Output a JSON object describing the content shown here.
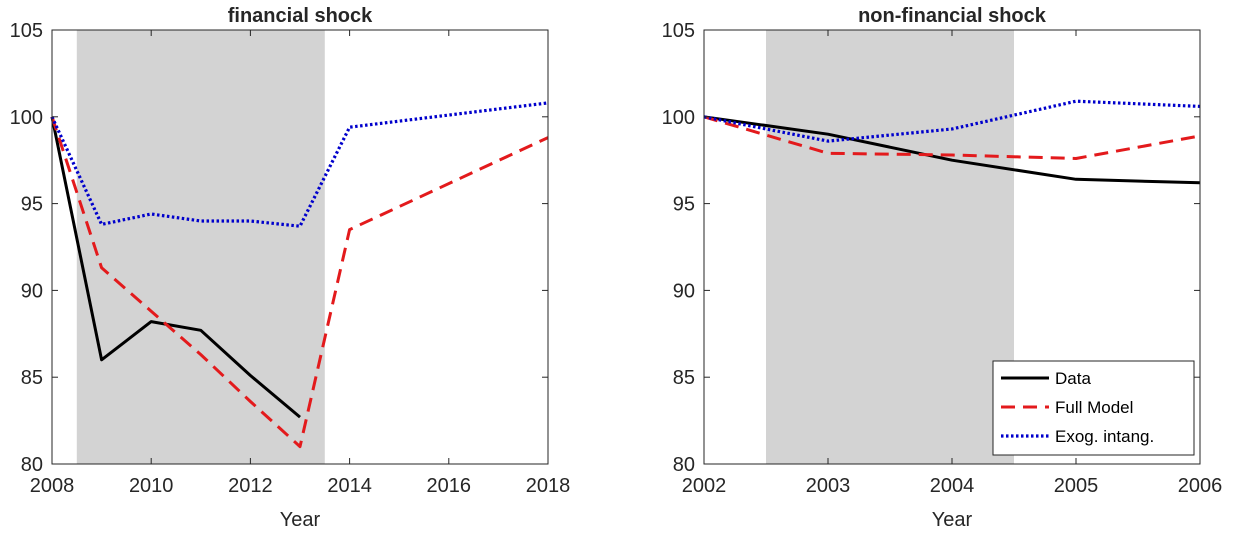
{
  "chart_data": [
    {
      "type": "line",
      "title": "financial shock",
      "xlabel": "Year",
      "ylabel": "",
      "xlim": [
        2008,
        2018
      ],
      "ylim": [
        80,
        105
      ],
      "xticks": [
        2008,
        2010,
        2012,
        2014,
        2016,
        2018
      ],
      "yticks": [
        80,
        85,
        90,
        95,
        100,
        105
      ],
      "shaded_region": [
        2008.5,
        2013.5
      ],
      "series": [
        {
          "key": "data",
          "color": "#000000",
          "style": "solid",
          "x": [
            2008,
            2009,
            2010,
            2011,
            2012,
            2013
          ],
          "values": [
            100,
            86.0,
            88.2,
            87.7,
            85.1,
            82.7
          ]
        },
        {
          "key": "full",
          "color": "#e31a1c",
          "style": "dashed",
          "x": [
            2008,
            2009,
            2010,
            2011,
            2012,
            2013,
            2014,
            2018
          ],
          "values": [
            100,
            91.3,
            88.8,
            86.3,
            83.6,
            81.0,
            93.5,
            98.8
          ]
        },
        {
          "key": "exog",
          "color": "#0000cc",
          "style": "dotted",
          "x": [
            2008,
            2009,
            2010,
            2011,
            2012,
            2013,
            2014,
            2018
          ],
          "values": [
            100,
            93.8,
            94.4,
            94.0,
            94.0,
            93.7,
            99.4,
            100.8
          ]
        }
      ]
    },
    {
      "type": "line",
      "title": "non-financial shock",
      "xlabel": "Year",
      "ylabel": "",
      "xlim": [
        2002,
        2006
      ],
      "ylim": [
        80,
        105
      ],
      "xticks": [
        2002,
        2003,
        2004,
        2005,
        2006
      ],
      "yticks": [
        80,
        85,
        90,
        95,
        100,
        105
      ],
      "shaded_region": [
        2002.5,
        2004.5
      ],
      "legend_position": "bottom-right",
      "series": [
        {
          "key": "data",
          "name": "Data",
          "color": "#000000",
          "style": "solid",
          "x": [
            2002,
            2003,
            2004,
            2005,
            2006
          ],
          "values": [
            100,
            99.0,
            97.5,
            96.4,
            96.2
          ]
        },
        {
          "key": "full",
          "name": "Full Model",
          "color": "#e31a1c",
          "style": "dashed",
          "x": [
            2002,
            2003,
            2004,
            2005,
            2006
          ],
          "values": [
            100,
            97.9,
            97.8,
            97.6,
            98.9
          ]
        },
        {
          "key": "exog",
          "name": "Exog. intang.",
          "color": "#0000cc",
          "style": "dotted",
          "x": [
            2002,
            2003,
            2004,
            2005,
            2006
          ],
          "values": [
            100,
            98.6,
            99.3,
            100.9,
            100.6
          ]
        }
      ]
    }
  ]
}
